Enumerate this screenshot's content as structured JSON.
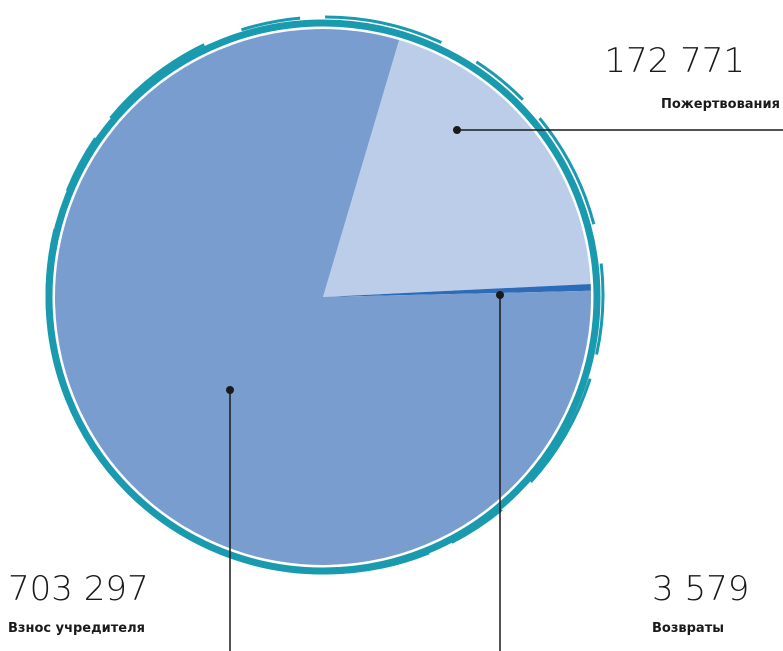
{
  "chart_data": {
    "type": "pie",
    "categories": [
      "Пожертвования",
      "Возвраты",
      "Взнос учредителя"
    ],
    "values": [
      172771,
      3579,
      703297
    ],
    "value_labels": [
      "172 771",
      "3 579",
      "703 297"
    ],
    "colors": [
      "#bccde9",
      "#2d6bb8",
      "#7a9dd0"
    ]
  }
}
